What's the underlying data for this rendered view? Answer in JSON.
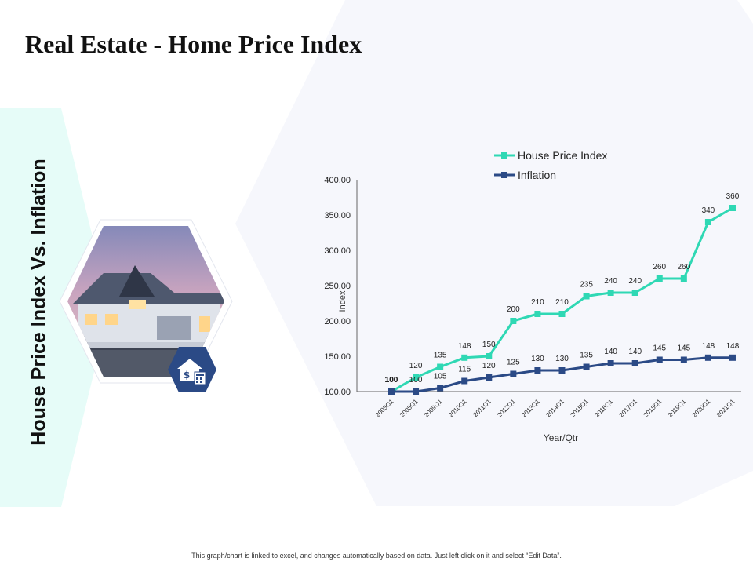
{
  "page": {
    "title": "Real Estate - Home Price Index",
    "side_title": "House Price Index Vs. Inflation",
    "footer": "This graph/chart is linked to excel, and changes automatically based on data. Just left click on it and select “Edit Data”."
  },
  "colors": {
    "house_price_index": "#2fd8b4",
    "inflation": "#2b4a86",
    "side_panel": "#e6fcf8",
    "background_hex": "#f6f7fc",
    "badge": "#2b4a86"
  },
  "icons": [
    "house-photo",
    "house-dollar-calculator-icon"
  ],
  "chart_data": {
    "type": "line",
    "categories": [
      "2003Q1",
      "2008Q1",
      "2009Q1",
      "2010Q1",
      "2011Q1",
      "2012Q1",
      "2013Q1",
      "2014Q1",
      "2015Q1",
      "2016Q1",
      "2017Q1",
      "2018Q1",
      "2019Q1",
      "2020Q1",
      "2021Q1"
    ],
    "series": [
      {
        "name": "House Price Index",
        "values": [
          100,
          120,
          135,
          148,
          150,
          200,
          210,
          210,
          235,
          240,
          240,
          260,
          260,
          340,
          360
        ]
      },
      {
        "name": "Inflation",
        "values": [
          100,
          100,
          105,
          115,
          120,
          125,
          130,
          130,
          135,
          140,
          140,
          145,
          145,
          148,
          148
        ]
      }
    ],
    "xlabel": "Year/Qtr",
    "ylabel": "Index",
    "ylim": [
      100,
      400
    ],
    "yticks": [
      "100.00",
      "150.00",
      "200.00",
      "250.00",
      "300.00",
      "350.00",
      "400.00"
    ],
    "grid": false,
    "legend_position": "top"
  }
}
